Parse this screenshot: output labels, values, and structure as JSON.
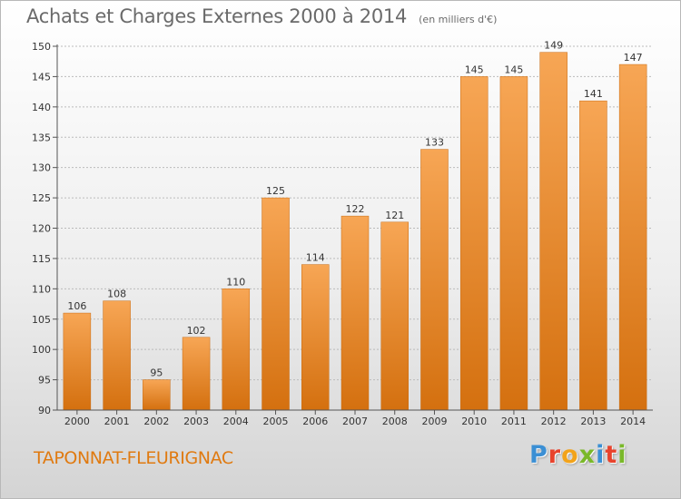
{
  "header": {
    "title": "Achats et Charges Externes 2000 à 2014",
    "subtitle": "(en milliers d'€)"
  },
  "footer": {
    "commune": "TAPONNAT-FLEURIGNAC",
    "logo_text": "Proxiti",
    "logo_colors": [
      "#3b8fd4",
      "#e8432d",
      "#f2a31b",
      "#7ab829",
      "#3b8fd4",
      "#e8432d",
      "#7ab829"
    ]
  },
  "colors": {
    "bar_top": "#f7a655",
    "bar_bottom": "#d4700f",
    "axis": "#555555",
    "grid": "#bbbbbb",
    "text": "#333333"
  },
  "chart_data": {
    "type": "bar",
    "title": "Achats et Charges Externes 2000 à 2014",
    "subtitle": "(en milliers d'€)",
    "categories": [
      "2000",
      "2001",
      "2002",
      "2003",
      "2004",
      "2005",
      "2006",
      "2007",
      "2008",
      "2009",
      "2010",
      "2011",
      "2012",
      "2013",
      "2014"
    ],
    "values": [
      106,
      108,
      95,
      102,
      110,
      125,
      114,
      122,
      121,
      133,
      145,
      145,
      149,
      141,
      147
    ],
    "yticks": [
      90,
      95,
      100,
      105,
      110,
      115,
      120,
      125,
      130,
      135,
      140,
      145,
      150
    ],
    "ylim": [
      90,
      150
    ],
    "grid": true,
    "data_labels": true
  }
}
